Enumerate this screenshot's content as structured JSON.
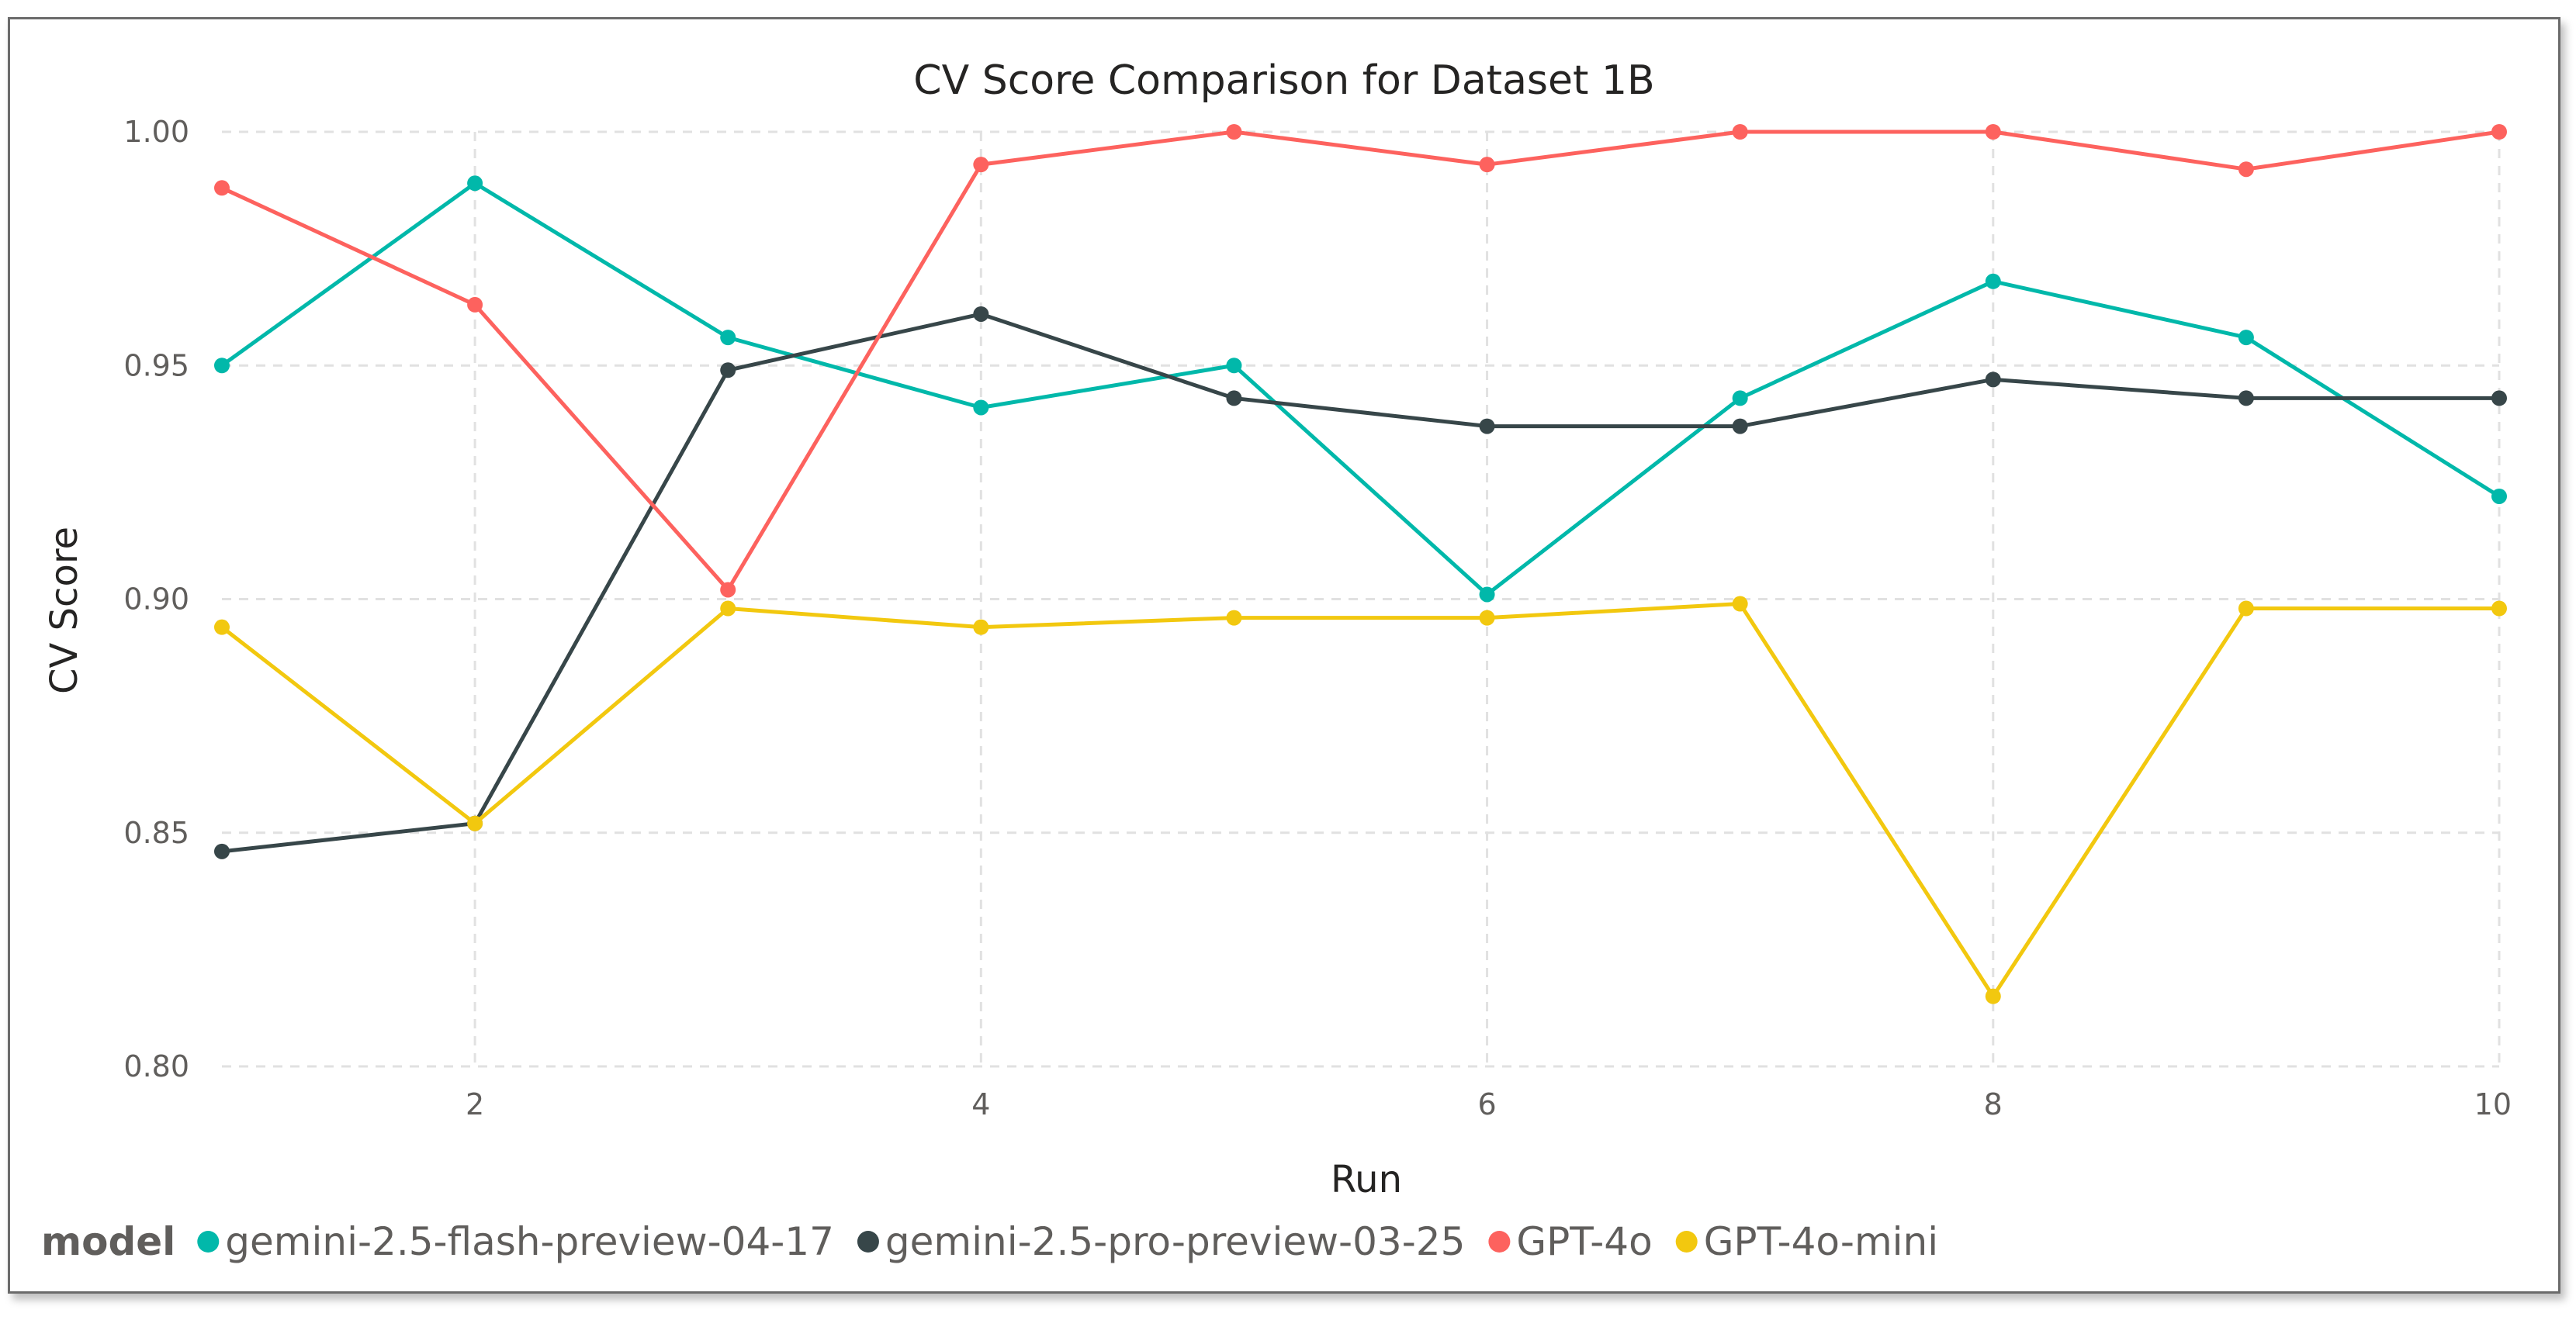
{
  "chart_data": {
    "type": "line",
    "title": "CV Score Comparison for Dataset 1B",
    "xlabel": "Run",
    "ylabel": "CV Score",
    "x": [
      1,
      2,
      3,
      4,
      5,
      6,
      7,
      8,
      9,
      10
    ],
    "xticks": [
      2,
      4,
      6,
      8,
      10
    ],
    "xtick_labels": [
      "2",
      "4",
      "6",
      "8",
      "10"
    ],
    "yticks": [
      0.8,
      0.85,
      0.9,
      0.95,
      1.0
    ],
    "ytick_labels": [
      "0.80",
      "0.85",
      "0.90",
      "0.95",
      "1.00"
    ],
    "xlim": [
      1,
      10
    ],
    "ylim": [
      0.8,
      1.0
    ],
    "grid": true,
    "legend_title": "model",
    "legend_position": "bottom-left",
    "series": [
      {
        "name": "gemini-2.5-flash-preview-04-17",
        "color": "#01b8aa",
        "values": [
          0.95,
          0.989,
          0.956,
          0.941,
          0.95,
          0.901,
          0.943,
          0.968,
          0.956,
          0.922
        ]
      },
      {
        "name": "gemini-2.5-pro-preview-03-25",
        "color": "#374649",
        "values": [
          0.846,
          0.852,
          0.949,
          0.961,
          0.943,
          0.937,
          0.937,
          0.947,
          0.943,
          0.943
        ]
      },
      {
        "name": "GPT-4o",
        "color": "#fd625e",
        "values": [
          0.988,
          0.963,
          0.902,
          0.993,
          1.0,
          0.993,
          1.0,
          1.0,
          0.992,
          1.0
        ]
      },
      {
        "name": "GPT-4o-mini",
        "color": "#f2c80f",
        "values": [
          0.894,
          0.852,
          0.898,
          0.894,
          0.896,
          0.896,
          0.899,
          0.815,
          0.898,
          0.898
        ]
      }
    ]
  }
}
